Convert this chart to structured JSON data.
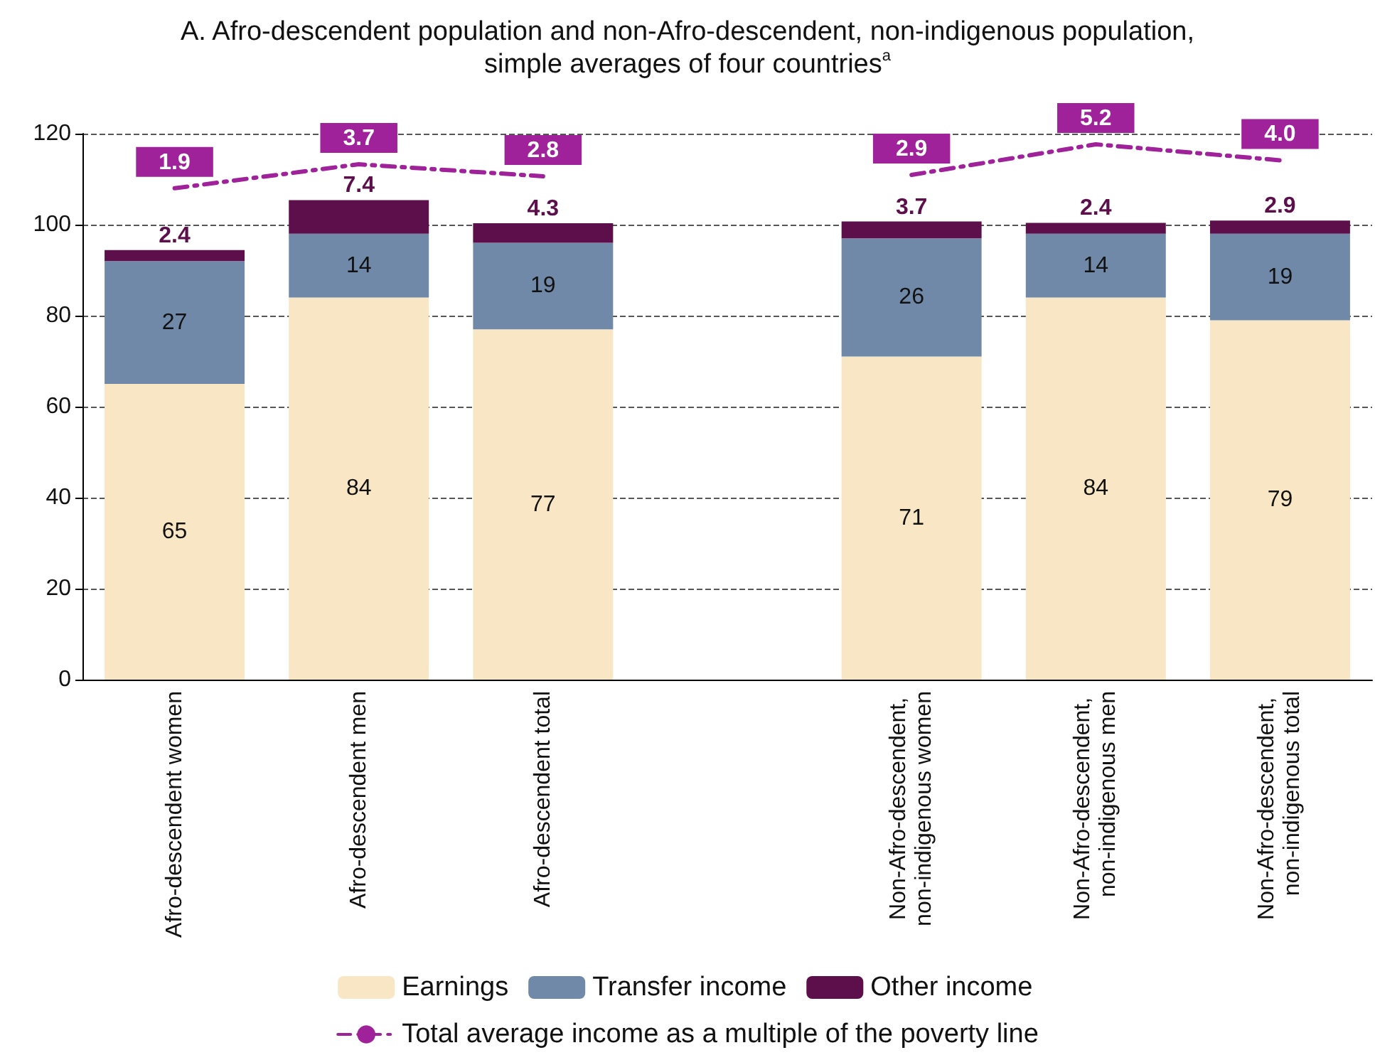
{
  "chart_data": {
    "type": "bar",
    "stacked": true,
    "title": "A. Afro-descendent population and non-Afro-descendent, non-indigenous population, simple averages of four countries$^{a}$",
    "categories": [
      "Afro-descendent women",
      "Afro-descendent men",
      "Afro-descendent total",
      null,
      "Non-Afro-descendent, non-indigenous women",
      "Non-Afro-descendent, non-indigenous men",
      "Non-Afro-descendent, non-indigenous total"
    ],
    "series": [
      {
        "name": "Earnings",
        "color": "#f8e6c4",
        "values": [
          65,
          84,
          77,
          null,
          71,
          84,
          79
        ],
        "value_labels": [
          "65",
          "84",
          "77",
          null,
          "71",
          "84",
          "79"
        ]
      },
      {
        "name": "Transfer income",
        "color": "#7189a8",
        "values": [
          27,
          14,
          19,
          null,
          26,
          14,
          19
        ],
        "value_labels": [
          "27",
          "14",
          "19",
          null,
          "26",
          "14",
          "19"
        ]
      },
      {
        "name": "Other income",
        "color": "#5c0f4a",
        "values": [
          2.4,
          7.4,
          4.3,
          null,
          3.7,
          2.4,
          2.9
        ],
        "value_labels": [
          "2.4",
          "7.4",
          "4.3",
          null,
          "3.7",
          "2.4",
          "2.9"
        ]
      },
      {
        "name": "Total average income as a multiple of the poverty line",
        "type": "line",
        "axis": "y2",
        "color": "#a0229a",
        "line_style": "dashed",
        "values": [
          1.9,
          3.7,
          2.8,
          null,
          2.9,
          5.2,
          4.0
        ],
        "value_labels": [
          "1.9",
          "3.7",
          "2.8",
          null,
          "2.9",
          "5.2",
          "4.0"
        ]
      }
    ],
    "ylim": [
      0,
      120
    ],
    "yticks": [
      0,
      20,
      40,
      60,
      80,
      100,
      120
    ],
    "y2lim": [
      -35,
      6
    ],
    "grid": "y",
    "legend": "bottom",
    "tick_labels": "xy"
  }
}
